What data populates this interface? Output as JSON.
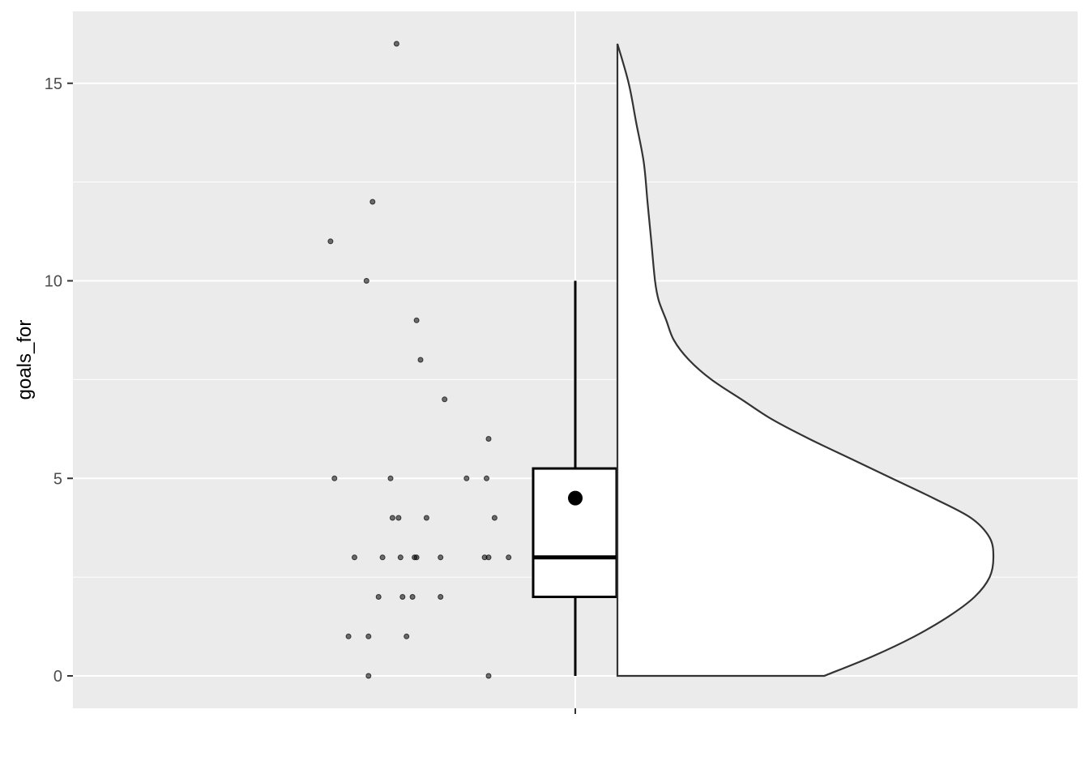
{
  "chart_data": {
    "type": "raincloud",
    "ylabel": "goals_for",
    "xlabel": "",
    "ylim": [
      -0.8,
      16.8
    ],
    "yticks": [
      0,
      5,
      10,
      15
    ],
    "ytick_labels": [
      "0",
      "5",
      "10",
      "15"
    ],
    "ygrid_minor": [
      2.5,
      7.5,
      12.5
    ],
    "grid": true,
    "points": [
      16,
      12,
      11,
      10,
      9,
      8,
      7,
      6,
      5,
      5,
      5,
      5,
      4,
      4,
      4,
      4,
      3,
      3,
      3,
      3,
      3,
      3,
      3,
      3,
      3,
      2,
      2,
      2,
      2,
      1,
      1,
      1,
      0,
      0
    ],
    "point_jitter": [
      0.37,
      0.25,
      0.04,
      0.22,
      0.47,
      0.49,
      0.61,
      0.83,
      0.34,
      0.72,
      0.82,
      0.06,
      0.38,
      0.52,
      0.86,
      0.35,
      0.3,
      0.39,
      0.46,
      0.47,
      0.59,
      0.81,
      0.83,
      0.93,
      0.16,
      0.28,
      0.4,
      0.45,
      0.59,
      0.13,
      0.23,
      0.42,
      0.23,
      0.83
    ],
    "boxplot": {
      "min": 0,
      "q1": 2,
      "median": 3,
      "q3": 5.25,
      "max": 10,
      "mean": 4.5
    },
    "violin_density": [
      [
        0,
        0.55
      ],
      [
        0.5,
        0.68
      ],
      [
        1,
        0.79
      ],
      [
        1.5,
        0.88
      ],
      [
        2,
        0.95
      ],
      [
        2.5,
        0.99
      ],
      [
        3,
        1.0
      ],
      [
        3.5,
        0.99
      ],
      [
        4,
        0.94
      ],
      [
        4.5,
        0.84
      ],
      [
        5,
        0.73
      ],
      [
        5.5,
        0.62
      ],
      [
        6,
        0.51
      ],
      [
        6.5,
        0.41
      ],
      [
        7,
        0.33
      ],
      [
        7.5,
        0.25
      ],
      [
        8,
        0.19
      ],
      [
        8.5,
        0.15
      ],
      [
        9,
        0.13
      ],
      [
        9.5,
        0.11
      ],
      [
        10,
        0.1
      ],
      [
        11,
        0.09
      ],
      [
        12,
        0.08
      ],
      [
        13,
        0.07
      ],
      [
        14,
        0.05
      ],
      [
        15,
        0.03
      ],
      [
        16,
        0.0
      ]
    ],
    "colors": {
      "panel": "#ebebeb",
      "grid": "#ffffff",
      "point": "#000000",
      "box_fill": "#ffffff",
      "outline": "#000000",
      "violin_outline": "#333333"
    }
  }
}
